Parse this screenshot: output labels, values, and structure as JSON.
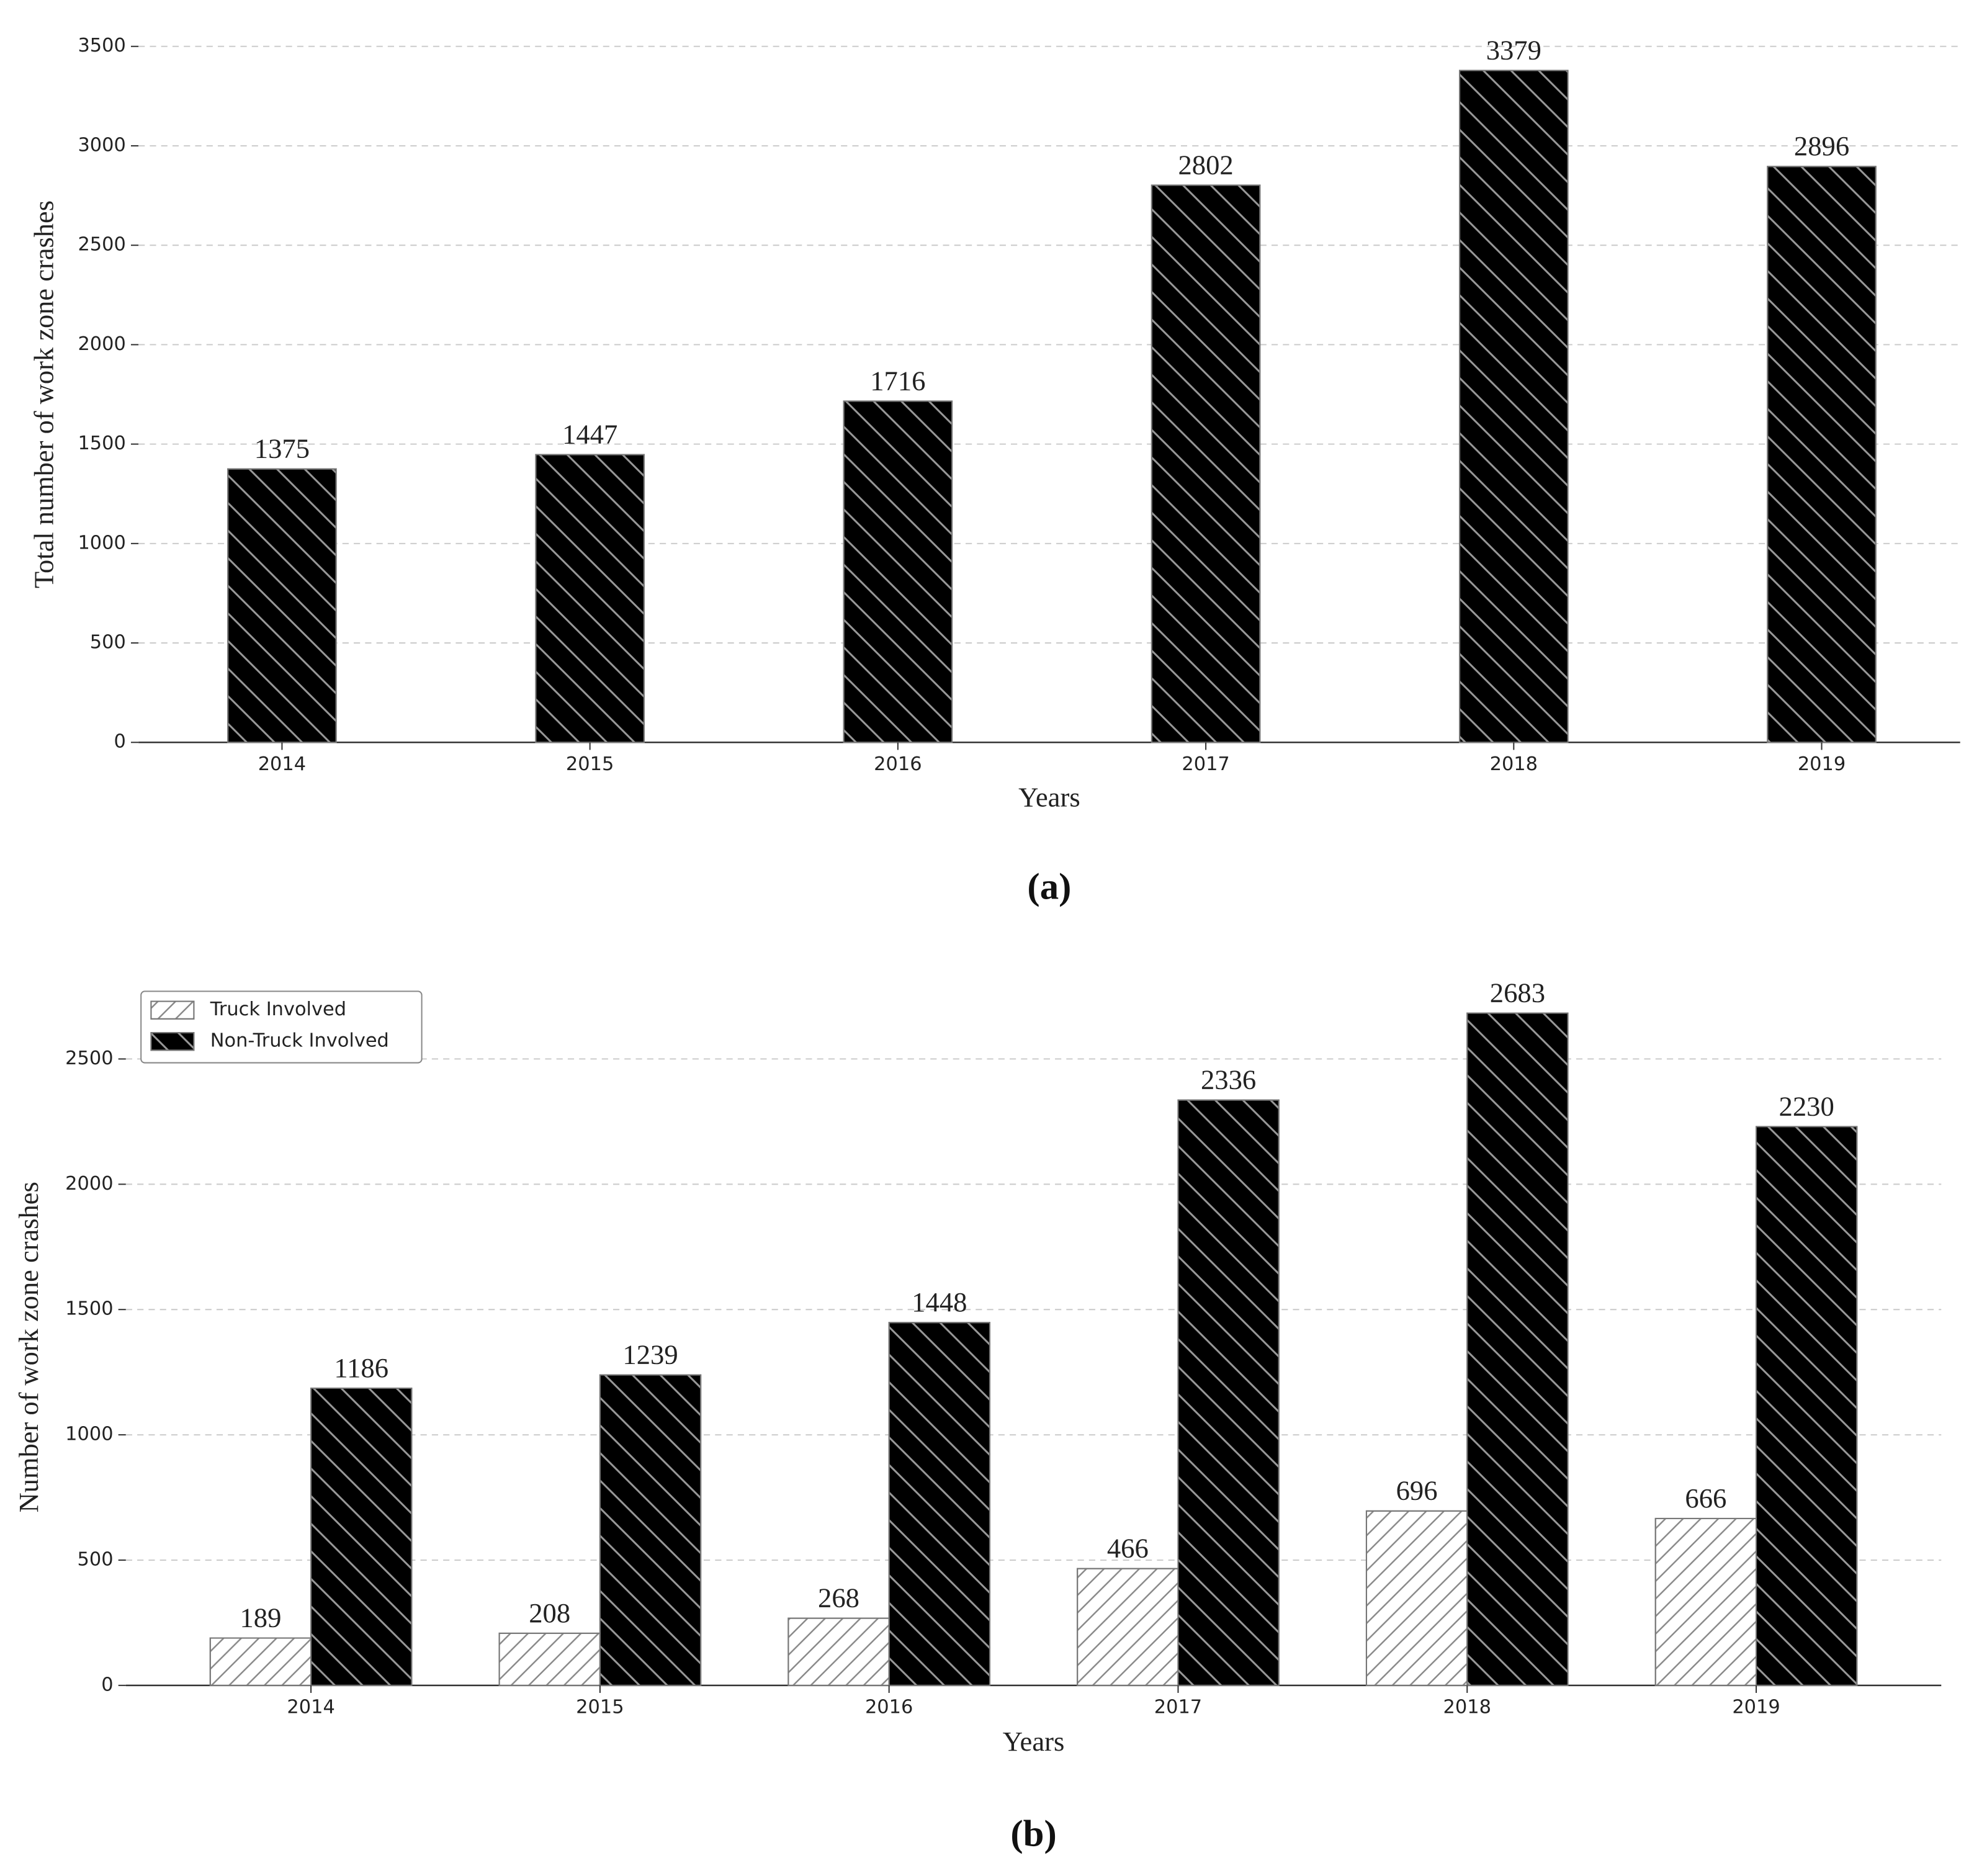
{
  "chart_data": [
    {
      "type": "bar",
      "caption": "(a)",
      "x_label": "Years",
      "y_label": "Total number of work zone crashes",
      "categories": [
        "2014",
        "2015",
        "2016",
        "2017",
        "2018",
        "2019"
      ],
      "series": [
        {
          "color": "#000000",
          "hatch": "\\",
          "values": [
            1375,
            1447,
            1716,
            2802,
            3379,
            2896
          ]
        }
      ],
      "ylim": [
        0,
        3500
      ],
      "yticks": [
        0,
        500,
        1000,
        1500,
        2000,
        2500,
        3000,
        3500
      ],
      "grid": true
    },
    {
      "type": "bar",
      "caption": "(b)",
      "x_label": "Years",
      "y_label": "Number of work zone crashes",
      "categories": [
        "2014",
        "2015",
        "2016",
        "2017",
        "2018",
        "2019"
      ],
      "series": [
        {
          "name": "Truck Involved",
          "color": "#ffffff",
          "hatch": "/",
          "values": [
            189,
            208,
            268,
            466,
            696,
            666
          ]
        },
        {
          "name": "Non-Truck Involved",
          "color": "#000000",
          "hatch": "\\",
          "values": [
            1186,
            1239,
            1448,
            2336,
            2683,
            2230
          ]
        }
      ],
      "ylim": [
        0,
        2700
      ],
      "yticks": [
        0,
        500,
        1000,
        1500,
        2000,
        2500
      ],
      "grid": true,
      "legend": "upper-left"
    }
  ]
}
